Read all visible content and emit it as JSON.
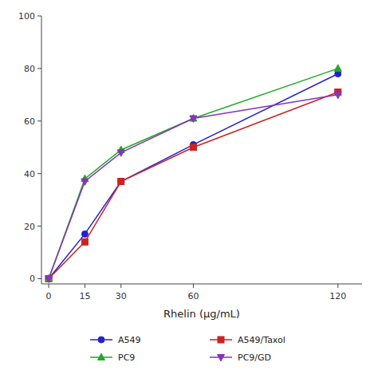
{
  "chart_data": {
    "type": "line",
    "x": [
      0,
      15,
      30,
      60,
      120
    ],
    "series": [
      {
        "name": "A549",
        "values": [
          0,
          17,
          37,
          51,
          78
        ],
        "color": "#2222cc",
        "marker": "circle"
      },
      {
        "name": "A549/Taxol",
        "values": [
          0,
          14,
          37,
          50,
          71
        ],
        "color": "#cc2222",
        "marker": "square"
      },
      {
        "name": "PC9",
        "values": [
          0,
          38,
          49,
          61,
          80
        ],
        "color": "#22aa22",
        "marker": "triangle-up"
      },
      {
        "name": "PC9/GD",
        "values": [
          0,
          37,
          48,
          61,
          70
        ],
        "color": "#8833bb",
        "marker": "triangle-down"
      }
    ],
    "x_label": "Rhelin (μg/mL)",
    "xlim": [
      -3,
      130
    ],
    "ylim": [
      -2,
      100
    ],
    "xticks": [
      0,
      15,
      30,
      60,
      120
    ],
    "yticks": [
      0,
      20,
      40,
      60,
      80,
      100
    ],
    "grid": false,
    "legend": "bottom"
  }
}
